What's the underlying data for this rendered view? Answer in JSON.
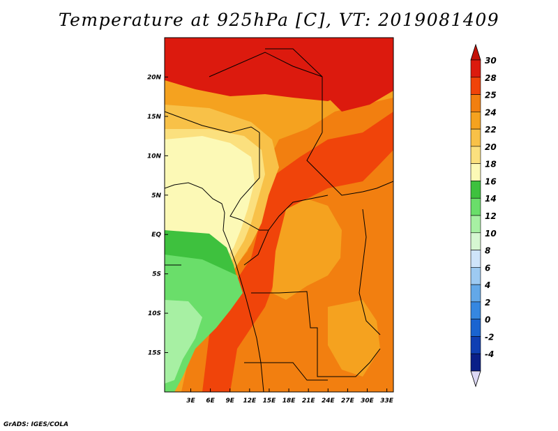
{
  "title": "Temperature at 925hPa [C], VT: 2019081409",
  "credit": "GrADS: IGES/COLA",
  "map": {
    "lon_range": [
      -1,
      34
    ],
    "lat_range": [
      -20,
      25
    ],
    "x_ticks": [
      "3E",
      "6E",
      "9E",
      "12E",
      "15E",
      "18E",
      "21E",
      "24E",
      "27E",
      "30E",
      "33E"
    ],
    "x_tick_values": [
      3,
      6,
      9,
      12,
      15,
      18,
      21,
      24,
      27,
      30,
      33
    ],
    "y_ticks": [
      "20N",
      "15N",
      "10N",
      "5N",
      "EQ",
      "5S",
      "10S",
      "15S"
    ],
    "y_tick_values": [
      20,
      15,
      10,
      5,
      0,
      -5,
      -10,
      -15
    ]
  },
  "colorbar": {
    "labels": [
      "30",
      "28",
      "25",
      "24",
      "22",
      "20",
      "18",
      "16",
      "14",
      "12",
      "10",
      "8",
      "6",
      "4",
      "2",
      "0",
      "-2",
      "-4"
    ],
    "colors": [
      "#dc1a0e",
      "#f0440a",
      "#f27f10",
      "#f5a21f",
      "#f8c148",
      "#fbe07e",
      "#fcf9b6",
      "#3ec13e",
      "#6ade6a",
      "#a7f0a3",
      "#d6f7d2",
      "#cfe4fa",
      "#9dcaf2",
      "#63a8e8",
      "#3687e0",
      "#1a64d0",
      "#0f3fb3",
      "#0a1f88"
    ],
    "top_arrow_color": "#c41108",
    "bottom_arrow_color": "#dcd8f4"
  }
}
